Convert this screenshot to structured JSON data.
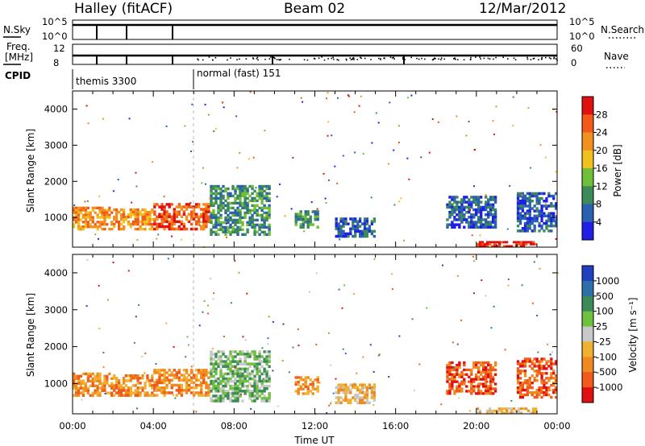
{
  "header": {
    "station": "Halley (fitACF)",
    "beam": "Beam 02",
    "date": "12/Mar/2012"
  },
  "top_panels": {
    "nsky_label": "N.Sky",
    "nsky_ticks": [
      "10^5",
      "10^0"
    ],
    "nsearch_label": "N.Search",
    "nsearch_ticks": [
      "10^5",
      "10^0"
    ],
    "freq_label_1": "Freq.",
    "freq_label_2": "[MHz]",
    "freq_ticks": [
      "12",
      "8"
    ],
    "nave_label": "Nave",
    "nave_ticks": [
      "60",
      "0"
    ],
    "cpid_label": "CPID",
    "cpid_segments": [
      {
        "label": "themis 3300",
        "start_hour": 0.0
      },
      {
        "label": "normal (fast) 151",
        "start_hour": 6.0
      }
    ]
  },
  "chart_data": [
    {
      "type": "heatmap",
      "name": "power",
      "ylabel": "Slant Range [km]",
      "ylim": [
        180,
        4500
      ],
      "yticks": [
        "1000",
        "2000",
        "3000",
        "4000"
      ],
      "xlim": [
        0,
        24
      ],
      "colorbar_label": "Power [dB]",
      "colorbar_ticks": [
        "4",
        "8",
        "12",
        "16",
        "20",
        "24",
        "28"
      ],
      "colors": [
        "#1f1fe6",
        "#2b5fb2",
        "#3c8a5a",
        "#6fbf3a",
        "#f0c020",
        "#f29020",
        "#f25a1a",
        "#e01010"
      ],
      "echo_regions": [
        {
          "t0": 0.0,
          "t1": 2.0,
          "r0": 650,
          "r1": 1300,
          "level": 5
        },
        {
          "t0": 2.0,
          "t1": 4.0,
          "r0": 650,
          "r1": 1250,
          "level": 5
        },
        {
          "t0": 4.0,
          "t1": 6.8,
          "r0": 650,
          "r1": 1400,
          "level": 6
        },
        {
          "t0": 6.8,
          "t1": 9.8,
          "r0": 500,
          "r1": 1900,
          "level": 2
        },
        {
          "t0": 11.0,
          "t1": 12.2,
          "r0": 700,
          "r1": 1200,
          "level": 2
        },
        {
          "t0": 13.0,
          "t1": 15.0,
          "r0": 450,
          "r1": 1000,
          "level": 1
        },
        {
          "t0": 18.5,
          "t1": 21.0,
          "r0": 700,
          "r1": 1600,
          "level": 1
        },
        {
          "t0": 20.0,
          "t1": 23.0,
          "r0": 180,
          "r1": 350,
          "level": 7
        },
        {
          "t0": 22.0,
          "t1": 24.0,
          "r0": 600,
          "r1": 1700,
          "level": 1
        }
      ]
    },
    {
      "type": "heatmap",
      "name": "velocity",
      "ylabel": "Slant Range [km]",
      "ylim": [
        180,
        4500
      ],
      "yticks": [
        "1000",
        "2000",
        "3000",
        "4000"
      ],
      "xlim": [
        0,
        24
      ],
      "colorbar_label": "Velocity [m s⁻¹]",
      "colorbar_ticks": [
        "1000",
        "500",
        "100",
        "25",
        "-25",
        "-100",
        "-500",
        "-1000"
      ],
      "colors": [
        "#2040c0",
        "#2f6fa8",
        "#3c8a5a",
        "#70c040",
        "#c8c8c8",
        "#f0b030",
        "#f08a20",
        "#f05a1a",
        "#e01010"
      ],
      "echo_regions": [
        {
          "t0": 0.0,
          "t1": 2.0,
          "r0": 650,
          "r1": 1300,
          "level": 6
        },
        {
          "t0": 2.0,
          "t1": 4.0,
          "r0": 650,
          "r1": 1250,
          "level": 6
        },
        {
          "t0": 4.0,
          "t1": 6.8,
          "r0": 650,
          "r1": 1400,
          "level": 6
        },
        {
          "t0": 6.8,
          "t1": 9.8,
          "r0": 500,
          "r1": 1900,
          "level": 3
        },
        {
          "t0": 11.0,
          "t1": 12.2,
          "r0": 700,
          "r1": 1200,
          "level": 6
        },
        {
          "t0": 13.0,
          "t1": 15.0,
          "r0": 450,
          "r1": 1000,
          "level": 5
        },
        {
          "t0": 18.5,
          "t1": 21.0,
          "r0": 700,
          "r1": 1600,
          "level": 7
        },
        {
          "t0": 20.0,
          "t1": 23.0,
          "r0": 180,
          "r1": 350,
          "level": 5
        },
        {
          "t0": 22.0,
          "t1": 24.0,
          "r0": 600,
          "r1": 1700,
          "level": 7
        }
      ]
    }
  ],
  "x_axis": {
    "label": "Time UT",
    "ticks": [
      "00:00",
      "04:00",
      "08:00",
      "12:00",
      "16:00",
      "20:00",
      "00:00"
    ]
  }
}
